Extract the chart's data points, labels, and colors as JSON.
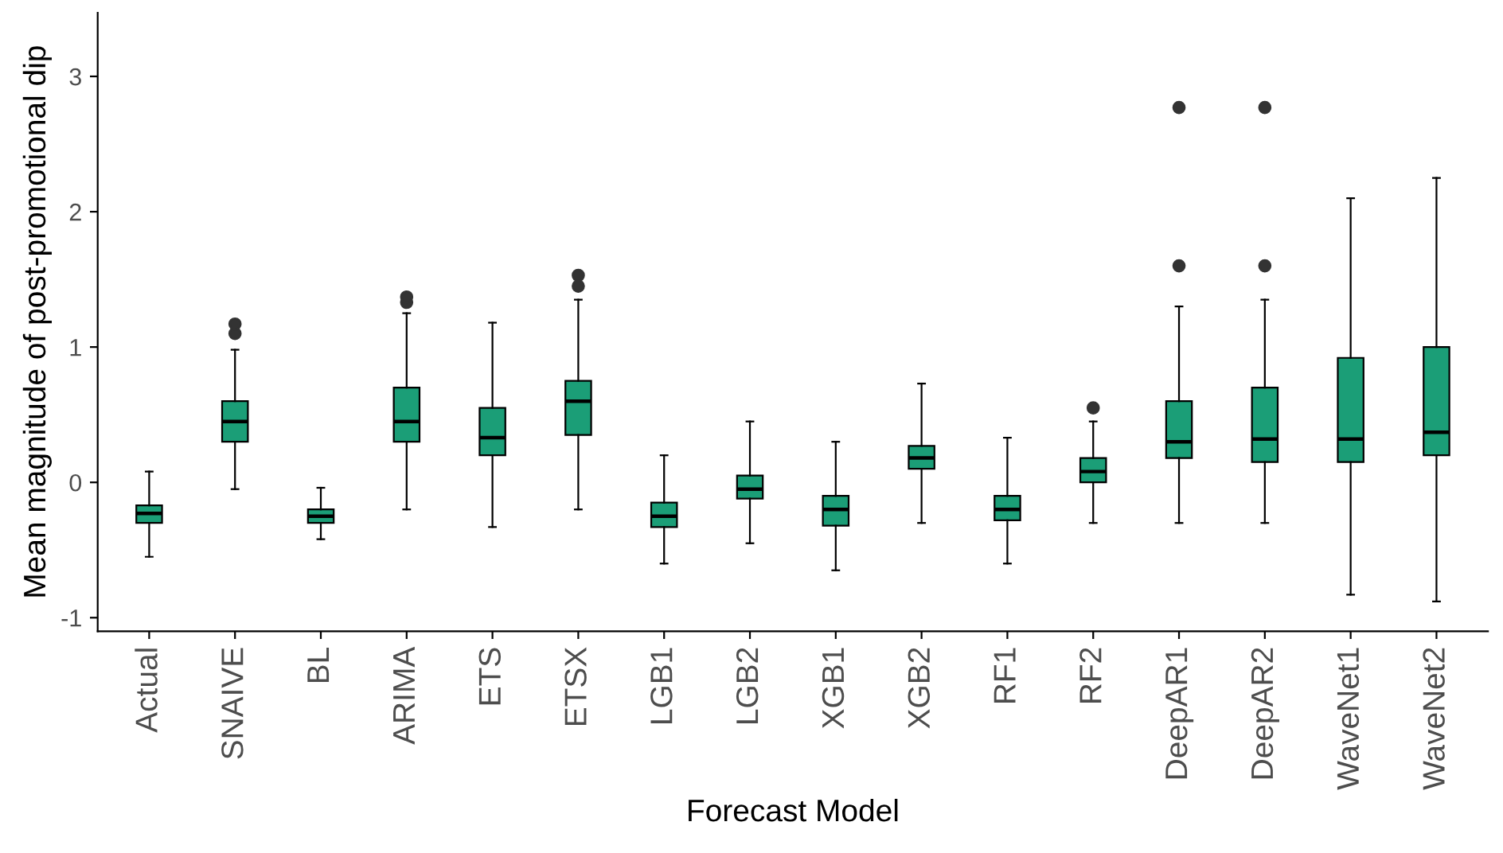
{
  "chart_data": {
    "type": "box",
    "xlabel": "Forecast Model",
    "ylabel": "Mean magnitude of post-promotional dip",
    "categories": [
      "Actual",
      "SNAIVE",
      "BL",
      "ARIMA",
      "ETS",
      "ETSX",
      "LGB1",
      "LGB2",
      "XGB1",
      "XGB2",
      "RF1",
      "RF2",
      "DeepAR1",
      "DeepAR2",
      "WaveNet1",
      "WaveNet2"
    ],
    "color": "#1b9e77",
    "boxes": [
      {
        "low": -0.55,
        "q1": -0.3,
        "median": -0.23,
        "q3": -0.17,
        "high": 0.08
      },
      {
        "low": -0.05,
        "q1": 0.3,
        "median": 0.45,
        "q3": 0.6,
        "high": 0.98,
        "outliers": [
          1.1,
          1.17
        ]
      },
      {
        "low": -0.42,
        "q1": -0.3,
        "median": -0.25,
        "q3": -0.2,
        "high": -0.04
      },
      {
        "low": -0.2,
        "q1": 0.3,
        "median": 0.45,
        "q3": 0.7,
        "high": 1.25,
        "outliers": [
          1.33,
          1.37
        ]
      },
      {
        "low": -0.33,
        "q1": 0.2,
        "median": 0.33,
        "q3": 0.55,
        "high": 1.18
      },
      {
        "low": -0.2,
        "q1": 0.35,
        "median": 0.6,
        "q3": 0.75,
        "high": 1.35,
        "outliers": [
          1.45,
          1.53
        ]
      },
      {
        "low": -0.6,
        "q1": -0.33,
        "median": -0.25,
        "q3": -0.15,
        "high": 0.2
      },
      {
        "low": -0.45,
        "q1": -0.12,
        "median": -0.05,
        "q3": 0.05,
        "high": 0.45
      },
      {
        "low": -0.65,
        "q1": -0.32,
        "median": -0.2,
        "q3": -0.1,
        "high": 0.3
      },
      {
        "low": -0.3,
        "q1": 0.1,
        "median": 0.18,
        "q3": 0.27,
        "high": 0.73
      },
      {
        "low": -0.6,
        "q1": -0.28,
        "median": -0.2,
        "q3": -0.1,
        "high": 0.33
      },
      {
        "low": -0.3,
        "q1": 0.0,
        "median": 0.08,
        "q3": 0.18,
        "high": 0.45,
        "outliers": [
          0.55
        ]
      },
      {
        "low": -0.3,
        "q1": 0.18,
        "median": 0.3,
        "q3": 0.6,
        "high": 1.3,
        "outliers": [
          1.6,
          2.77
        ]
      },
      {
        "low": -0.3,
        "q1": 0.15,
        "median": 0.32,
        "q3": 0.7,
        "high": 1.35,
        "outliers": [
          1.6,
          2.77
        ]
      },
      {
        "low": -0.83,
        "q1": 0.15,
        "median": 0.32,
        "q3": 0.92,
        "high": 2.1
      },
      {
        "low": -0.88,
        "q1": 0.2,
        "median": 0.37,
        "q3": 1.0,
        "high": 2.25
      }
    ],
    "ylim": [
      -1.1,
      3.47
    ],
    "yticks": [
      -1,
      0,
      1,
      2,
      3
    ],
    "grid": false,
    "legend": false
  }
}
